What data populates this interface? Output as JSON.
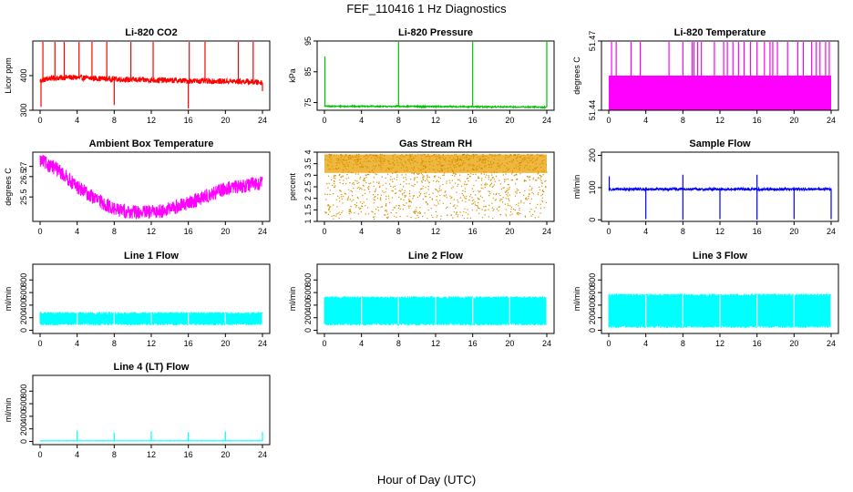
{
  "figure": {
    "title": "FEF_110416  1 Hz Diagnostics",
    "xlabel": "Hour of Day (UTC)"
  },
  "chart_data": [
    {
      "type": "line",
      "title": "Li-820 CO2",
      "ylabel": "Licor ppm",
      "color": "#ff0000",
      "xlim": [
        0,
        24
      ],
      "ylim": [
        300,
        500
      ],
      "yticks": [
        300,
        400
      ],
      "xticks": [
        0,
        4,
        8,
        12,
        16,
        20,
        24
      ],
      "baseline": [
        [
          0,
          385
        ],
        [
          1,
          392
        ],
        [
          3,
          395
        ],
        [
          6,
          392
        ],
        [
          10,
          388
        ],
        [
          14,
          386
        ],
        [
          18,
          384
        ],
        [
          22,
          383
        ],
        [
          24,
          380
        ]
      ],
      "noise": 8,
      "spikes": [
        [
          0.3,
          500
        ],
        [
          1.6,
          498
        ],
        [
          2.6,
          500
        ],
        [
          4.2,
          500
        ],
        [
          5.6,
          498
        ],
        [
          7.2,
          500
        ],
        [
          9.8,
          500
        ],
        [
          12.2,
          498
        ],
        [
          16.1,
          500
        ],
        [
          17.8,
          500
        ],
        [
          21.4,
          500
        ],
        [
          23.0,
          500
        ]
      ],
      "dips": [
        [
          0.1,
          310
        ],
        [
          8.0,
          315
        ],
        [
          16.0,
          305
        ],
        [
          24.0,
          355
        ]
      ]
    },
    {
      "type": "line",
      "title": "Li-820 Pressure",
      "ylabel": "kPa",
      "color": "#00c000",
      "xlim": [
        0,
        24
      ],
      "ylim": [
        72.5,
        95
      ],
      "yticks": [
        75,
        85,
        95
      ],
      "xticks": [
        0,
        4,
        8,
        12,
        16,
        20,
        24
      ],
      "baseline": [
        [
          0,
          73.8
        ],
        [
          12,
          73.7
        ],
        [
          24,
          73.5
        ]
      ],
      "noise": 0.2,
      "spikes": [
        [
          0.05,
          90
        ],
        [
          8.0,
          95
        ],
        [
          16.0,
          95
        ],
        [
          24.0,
          95
        ]
      ],
      "dips": []
    },
    {
      "type": "line",
      "title": "Li-820 Temperature",
      "ylabel": "degrees C",
      "color": "#ff00ff",
      "xlim": [
        0,
        24
      ],
      "ylim": [
        51.44,
        51.47
      ],
      "yticks": [
        51.44,
        51.47
      ],
      "xticks": [
        0,
        4,
        8,
        12,
        16,
        20,
        24
      ],
      "band": [
        51.44,
        51.455
      ],
      "band_top": 51.455,
      "spikes": [
        [
          0.3,
          51.472
        ],
        [
          0.8,
          51.472
        ],
        [
          2.4,
          51.472
        ],
        [
          3.4,
          51.472
        ],
        [
          6.5,
          51.472
        ],
        [
          8.0,
          51.472
        ],
        [
          9.0,
          51.472
        ],
        [
          9.2,
          51.472
        ],
        [
          9.6,
          51.472
        ],
        [
          10.0,
          51.472
        ],
        [
          11.4,
          51.472
        ],
        [
          12.4,
          51.472
        ],
        [
          12.8,
          51.472
        ],
        [
          13.4,
          51.472
        ],
        [
          14.0,
          51.472
        ],
        [
          14.6,
          51.472
        ],
        [
          15.3,
          51.472
        ],
        [
          16.0,
          51.472
        ],
        [
          16.8,
          51.472
        ],
        [
          17.4,
          51.472
        ],
        [
          17.7,
          51.472
        ],
        [
          18.2,
          51.472
        ],
        [
          19.3,
          51.472
        ],
        [
          20.4,
          51.472
        ],
        [
          21.0,
          51.472
        ],
        [
          21.9,
          51.472
        ],
        [
          22.4,
          51.472
        ],
        [
          22.8,
          51.472
        ],
        [
          23.4,
          51.472
        ],
        [
          23.8,
          51.472
        ]
      ]
    },
    {
      "type": "line",
      "title": "Ambient Box Temperature",
      "ylabel": "degrees C",
      "color": "#ff00ff",
      "xlim": [
        0,
        24
      ],
      "ylim": [
        24.3,
        27.7
      ],
      "yticks": [
        25.5,
        26.5,
        27.0
      ],
      "xticks": [
        0,
        4,
        8,
        12,
        16,
        20,
        24
      ],
      "baseline": [
        [
          0,
          27.3
        ],
        [
          2,
          26.8
        ],
        [
          4,
          26.0
        ],
        [
          6,
          25.4
        ],
        [
          8,
          24.9
        ],
        [
          10,
          24.75
        ],
        [
          12,
          24.75
        ],
        [
          14,
          24.9
        ],
        [
          16,
          25.2
        ],
        [
          18,
          25.55
        ],
        [
          20,
          25.9
        ],
        [
          22,
          26.05
        ],
        [
          24,
          26.2
        ]
      ],
      "noise": 0.35
    },
    {
      "type": "scatter",
      "title": "Gas Stream RH",
      "ylabel": "percent",
      "color": "#e8a000",
      "xlim": [
        0,
        24
      ],
      "ylim": [
        1.0,
        4.0
      ],
      "yticks": [
        1.0,
        1.5,
        2.0,
        2.5,
        3.0,
        3.5,
        4.0
      ],
      "xticks": [
        0,
        4,
        8,
        12,
        16,
        20,
        24
      ],
      "band": [
        1.1,
        3.9
      ]
    },
    {
      "type": "line",
      "title": "Sample Flow",
      "ylabel": "ml/min",
      "color": "#0000ff",
      "xlim": [
        0,
        24
      ],
      "ylim": [
        -5,
        210
      ],
      "yticks": [
        0,
        100,
        200
      ],
      "xticks": [
        0,
        4,
        8,
        12,
        16,
        20,
        24
      ],
      "baseline": [
        [
          0,
          95
        ],
        [
          24,
          95
        ]
      ],
      "noise": 4,
      "spikes": [
        [
          0.05,
          135
        ],
        [
          8.0,
          140
        ],
        [
          16.0,
          140
        ]
      ],
      "dips": [
        [
          4.0,
          2
        ],
        [
          8.0,
          0
        ],
        [
          12.0,
          2
        ],
        [
          16.0,
          0
        ],
        [
          20.0,
          2
        ],
        [
          24.0,
          2
        ]
      ]
    },
    {
      "type": "area",
      "title": "Line 1 Flow",
      "ylabel": "ml/min",
      "color": "#00ffff",
      "xlim": [
        0,
        24
      ],
      "ylim": [
        -50,
        1050
      ],
      "yticks": [
        0,
        200,
        400,
        600,
        800
      ],
      "xticks": [
        0,
        4,
        8,
        12,
        16,
        20,
        24
      ],
      "band": [
        100,
        270
      ],
      "gaps": [
        4,
        8,
        12,
        16,
        20,
        24
      ]
    },
    {
      "type": "area",
      "title": "Line 2 Flow",
      "ylabel": "ml/min",
      "color": "#00ffff",
      "xlim": [
        0,
        24
      ],
      "ylim": [
        -50,
        1050
      ],
      "yticks": [
        0,
        200,
        400,
        600,
        800
      ],
      "xticks": [
        0,
        4,
        8,
        12,
        16,
        20,
        24
      ],
      "band": [
        100,
        520
      ],
      "gaps": [
        4,
        8,
        12,
        16,
        20,
        24
      ]
    },
    {
      "type": "area",
      "title": "Line 3 Flow",
      "ylabel": "ml/min",
      "color": "#00ffff",
      "xlim": [
        0,
        24
      ],
      "ylim": [
        -50,
        1050
      ],
      "yticks": [
        0,
        200,
        400,
        600,
        800
      ],
      "xticks": [
        0,
        4,
        8,
        12,
        16,
        20,
        24
      ],
      "band": [
        60,
        560
      ],
      "gaps": [
        4,
        8,
        12,
        16,
        20,
        24
      ]
    },
    {
      "type": "line",
      "title": "Line 4 (LT) Flow",
      "ylabel": "ml/min",
      "color": "#00ffff",
      "xlim": [
        0,
        24
      ],
      "ylim": [
        -50,
        1050
      ],
      "yticks": [
        0,
        200,
        400,
        600,
        800
      ],
      "xticks": [
        0,
        4,
        8,
        12,
        16,
        20,
        24
      ],
      "baseline": [
        [
          0,
          10
        ],
        [
          24,
          10
        ]
      ],
      "noise": 2,
      "spikes": [
        [
          4.0,
          170
        ],
        [
          8.0,
          140
        ],
        [
          12.0,
          160
        ],
        [
          16.0,
          150
        ],
        [
          20.0,
          160
        ],
        [
          24.0,
          150
        ]
      ],
      "dips": []
    }
  ]
}
